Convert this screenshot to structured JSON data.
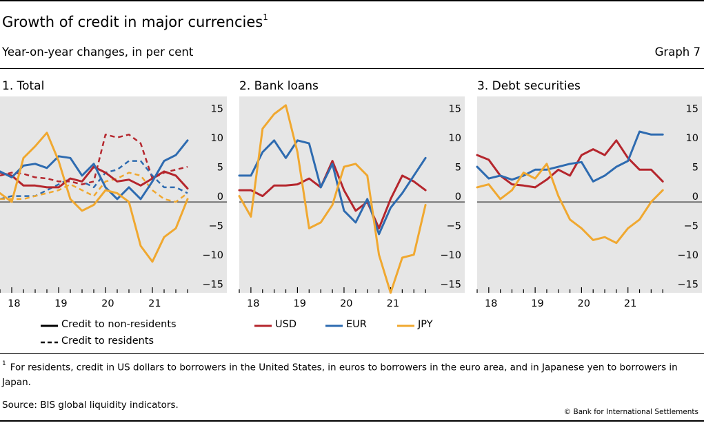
{
  "title": "Growth of credit in major currencies",
  "title_footnote_marker": "1",
  "subtitle": "Year-on-year changes, in per cent",
  "graph_label": "Graph 7",
  "legend": {
    "solid": "Credit to non-residents",
    "dashed": "Credit to residents",
    "usd": "USD",
    "eur": "EUR",
    "jpy": "JPY"
  },
  "footnote": {
    "marker": "1",
    "text": "For residents, credit in US dollars to borrowers in the United States, in euros to borrowers in the euro area, and in Japanese yen to borrowers in Japan."
  },
  "source": "Source: BIS global liquidity indicators.",
  "copyright": "© Bank for International Settlements",
  "colors": {
    "USD": "#b5262d",
    "EUR": "#2e6bb0",
    "JPY": "#f0a830",
    "panel_bg": "#e6e6e6"
  },
  "chart_data": [
    {
      "type": "line",
      "panel": "1. Total",
      "title": "1. Total",
      "x_tick_labels": [
        "18",
        "19",
        "20",
        "21"
      ],
      "y_ticks": [
        15,
        10,
        5,
        0,
        -5,
        -10,
        -15
      ],
      "ylim": [
        -15.5,
        18
      ],
      "xlim": [
        2017.75,
        2022.0
      ],
      "x": [
        2017.75,
        2018.0,
        2018.25,
        2018.5,
        2018.75,
        2019.0,
        2019.25,
        2019.5,
        2019.75,
        2020.0,
        2020.25,
        2020.5,
        2020.75,
        2021.0,
        2021.25,
        2021.5,
        2021.75
      ],
      "series": [
        {
          "name": "USD",
          "style": "solid",
          "color": "#b5262d",
          "values": [
            5.0,
            4.5,
            2.8,
            2.8,
            2.5,
            2.5,
            4.0,
            3.5,
            6.0,
            5.0,
            3.5,
            3.8,
            2.8,
            4.0,
            5.2,
            4.5,
            2.3
          ]
        },
        {
          "name": "EUR",
          "style": "solid",
          "color": "#2e6bb0",
          "values": [
            5.2,
            4.2,
            6.2,
            6.5,
            5.8,
            7.8,
            7.5,
            4.5,
            6.5,
            2.5,
            0.5,
            2.5,
            0.5,
            3.5,
            7.0,
            8.0,
            10.5
          ]
        },
        {
          "name": "JPY",
          "style": "solid",
          "color": "#f0a830",
          "values": [
            1.5,
            0.0,
            7.5,
            9.5,
            11.8,
            7.0,
            0.5,
            -1.5,
            -0.5,
            2.0,
            1.5,
            0.0,
            -7.5,
            -10.2,
            -6.0,
            -4.5,
            0.5
          ]
        },
        {
          "name": "USD",
          "style": "dashed",
          "color": "#b5262d",
          "values": [
            4.5,
            5.0,
            4.8,
            4.2,
            4.0,
            3.5,
            3.5,
            3.0,
            3.5,
            11.5,
            11.0,
            11.5,
            10.0,
            4.0,
            5.0,
            5.5,
            6.0
          ]
        },
        {
          "name": "EUR",
          "style": "dashed",
          "color": "#2e6bb0",
          "values": [
            0.5,
            1.0,
            1.0,
            1.0,
            2.0,
            3.0,
            4.0,
            3.5,
            2.5,
            5.0,
            5.5,
            7.0,
            7.0,
            4.5,
            2.5,
            2.5,
            1.5
          ]
        },
        {
          "name": "JPY",
          "style": "dashed",
          "color": "#f0a830",
          "values": [
            0.5,
            0.5,
            0.5,
            1.0,
            1.5,
            2.0,
            3.0,
            2.0,
            1.0,
            3.5,
            4.0,
            5.0,
            4.5,
            2.0,
            0.5,
            0.0,
            1.5
          ]
        }
      ]
    },
    {
      "type": "line",
      "panel": "2. Bank loans",
      "title": "2. Bank loans",
      "x_tick_labels": [
        "18",
        "19",
        "20",
        "21"
      ],
      "y_ticks": [
        15,
        10,
        5,
        0,
        -5,
        -10,
        -15
      ],
      "ylim": [
        -15.5,
        18
      ],
      "xlim": [
        2017.75,
        2022.0
      ],
      "x": [
        2017.75,
        2018.0,
        2018.25,
        2018.5,
        2018.75,
        2019.0,
        2019.25,
        2019.5,
        2019.75,
        2020.0,
        2020.25,
        2020.5,
        2020.75,
        2021.0,
        2021.25,
        2021.5,
        2021.75
      ],
      "series": [
        {
          "name": "USD",
          "style": "solid",
          "color": "#b5262d",
          "values": [
            2.0,
            2.0,
            1.0,
            2.8,
            2.8,
            3.0,
            4.0,
            2.5,
            7.0,
            2.0,
            -1.5,
            0.0,
            -4.5,
            0.5,
            4.5,
            3.5,
            2.0
          ]
        },
        {
          "name": "EUR",
          "style": "solid",
          "color": "#2e6bb0",
          "values": [
            4.5,
            4.5,
            8.5,
            10.5,
            7.5,
            10.5,
            10.0,
            2.5,
            6.5,
            -1.5,
            -3.5,
            0.5,
            -5.5,
            -1.0,
            1.5,
            4.5,
            7.5
          ]
        },
        {
          "name": "JPY",
          "style": "solid",
          "color": "#f0a830",
          "values": [
            1.0,
            -2.5,
            12.5,
            15.0,
            16.5,
            8.5,
            -4.5,
            -3.5,
            -0.5,
            6.0,
            6.5,
            4.5,
            -9.0,
            -15.5,
            -9.5,
            -9.0,
            -0.5
          ]
        }
      ]
    },
    {
      "type": "line",
      "panel": "3. Debt securities",
      "title": "3. Debt securities",
      "x_tick_labels": [
        "18",
        "19",
        "20",
        "21"
      ],
      "y_ticks": [
        15,
        10,
        5,
        0,
        -5,
        -10,
        -15
      ],
      "ylim": [
        -15.5,
        18
      ],
      "xlim": [
        2017.75,
        2022.0
      ],
      "x": [
        2017.75,
        2018.0,
        2018.25,
        2018.5,
        2018.75,
        2019.0,
        2019.25,
        2019.5,
        2019.75,
        2020.0,
        2020.25,
        2020.5,
        2020.75,
        2021.0,
        2021.25,
        2021.5,
        2021.75
      ],
      "series": [
        {
          "name": "USD",
          "style": "solid",
          "color": "#b5262d",
          "values": [
            8.0,
            7.2,
            4.5,
            3.0,
            2.8,
            2.5,
            3.8,
            5.5,
            4.5,
            8.0,
            9.0,
            8.0,
            10.5,
            7.5,
            5.5,
            5.5,
            3.5
          ]
        },
        {
          "name": "EUR",
          "style": "solid",
          "color": "#2e6bb0",
          "values": [
            6.0,
            4.0,
            4.5,
            3.8,
            4.5,
            5.5,
            5.5,
            6.0,
            6.5,
            6.8,
            3.5,
            4.5,
            6.0,
            7.0,
            12.0,
            11.5,
            11.5
          ]
        },
        {
          "name": "JPY",
          "style": "solid",
          "color": "#f0a830",
          "values": [
            2.5,
            3.0,
            0.5,
            2.0,
            5.0,
            4.0,
            6.5,
            1.0,
            -3.0,
            -4.5,
            -6.5,
            -6.0,
            -7.0,
            -4.5,
            -3.0,
            0.0,
            2.0
          ]
        }
      ]
    }
  ]
}
